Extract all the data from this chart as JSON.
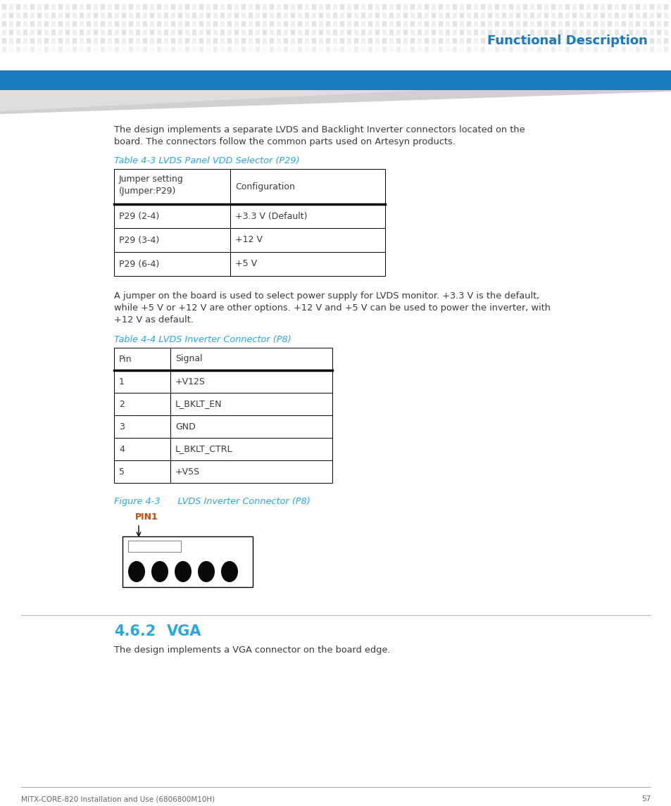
{
  "bg_color": "#ffffff",
  "header_dot_color_dark": "#cccccc",
  "header_dot_color_light": "#e8e8e8",
  "blue_bar_color": "#1a7abf",
  "header_title": "Functional Description",
  "header_title_color": "#1a7abf",
  "body_text_color": "#3a3a3a",
  "intro_text_line1": "The design implements a separate LVDS and Backlight Inverter connectors located on the",
  "intro_text_line2": "board. The connectors follow the common parts used on Artesyn products.",
  "table1_title": "Table 4-3 LVDS Panel VDD Selector (P29)",
  "table1_color": "#29a8e0",
  "table1_header1": "Jumper setting\n(Jumper:P29)",
  "table1_header2": "Configuration",
  "table1_rows": [
    [
      "P29 (2-4)",
      "+3.3 V (Default)"
    ],
    [
      "P29 (3-4)",
      "+12 V"
    ],
    [
      "P29 (6-4)",
      "+5 V"
    ]
  ],
  "mid_text_line1": "A jumper on the board is used to select power supply for LVDS monitor. +3.3 V is the default,",
  "mid_text_line2": "while +5 V or +12 V are other options. +12 V and +5 V can be used to power the inverter, with",
  "mid_text_line3": "+12 V as default.",
  "table2_title": "Table 4-4 LVDS Inverter Connector (P8)",
  "table2_color": "#29a8e0",
  "table2_header1": "Pin",
  "table2_header2": "Signal",
  "table2_rows": [
    [
      "1",
      "+V12S"
    ],
    [
      "2",
      "L_BKLT_EN"
    ],
    [
      "3",
      "GND"
    ],
    [
      "4",
      "L_BKLT_CTRL"
    ],
    [
      "5",
      "+V5S"
    ]
  ],
  "figure_title": "Figure 4-3      LVDS Inverter Connector (P8)",
  "figure_title_color": "#29a8e0",
  "pin1_color": "#cc4400",
  "section_num": "4.6.2",
  "section_name": "VGA",
  "section_title_color": "#29a8e0",
  "section_text": "The design implements a VGA connector on the board edge.",
  "footer_text": "MITX-CORE-820 Installation and Use (6806800M10H)",
  "footer_page": "57",
  "footer_color": "#666666"
}
